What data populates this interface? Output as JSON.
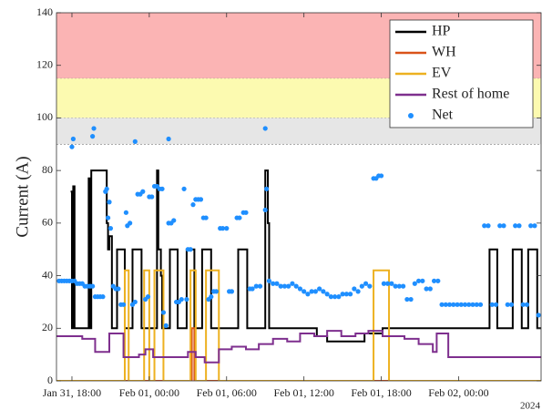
{
  "chart_data": {
    "type": "line",
    "y_label": "Current (A)",
    "year_label": "2024",
    "xlim": [
      16.8,
      54.4
    ],
    "xticks": [
      {
        "value": 18,
        "label": "Jan 31, 18:00"
      },
      {
        "value": 24,
        "label": "Feb 01, 00:00"
      },
      {
        "value": 30,
        "label": "Feb 01, 06:00"
      },
      {
        "value": 36,
        "label": "Feb 01, 12:00"
      },
      {
        "value": 42,
        "label": "Feb 01, 18:00"
      },
      {
        "value": 48,
        "label": "Feb 02, 00:00"
      }
    ],
    "ylim": [
      0,
      140
    ],
    "yticks": [
      0,
      20,
      40,
      60,
      80,
      100,
      120,
      140
    ],
    "legend": "upper right",
    "bands": [
      {
        "from": 115,
        "to": 140,
        "color": "#fbb4b4"
      },
      {
        "from": 100,
        "to": 115,
        "color": "#fcfab0"
      },
      {
        "from": 90,
        "to": 100,
        "color": "#e6e6e6"
      }
    ],
    "series": [
      {
        "name": "HP",
        "color": "#000000",
        "kind": "step",
        "x": [
          17.9,
          18.0,
          18.1,
          18.2,
          19.3,
          19.4,
          19.5,
          20.7,
          20.8,
          20.9,
          21.1,
          21.5,
          22.1,
          22.7,
          23.4,
          24.6,
          24.7,
          24.9,
          25.0,
          25.6,
          26.2,
          26.9,
          27.5,
          28.1,
          28.8,
          30.9,
          31.6,
          33.0,
          33.2,
          33.3,
          36.1,
          37.0,
          37.8,
          39.3,
          40.7,
          42.1,
          44.9,
          49.8,
          50.4,
          51.0,
          52.2,
          52.9,
          53.4,
          54.1,
          54.4
        ],
        "values": [
          72,
          20,
          74,
          20,
          77,
          20,
          80,
          60,
          50,
          55,
          20,
          50,
          20,
          50,
          20,
          80,
          50,
          40,
          20,
          50,
          20,
          50,
          20,
          50,
          20,
          50,
          20,
          80,
          60,
          20,
          20,
          17,
          15,
          15,
          18,
          20,
          20,
          20,
          50,
          20,
          50,
          20,
          50,
          20,
          20
        ]
      },
      {
        "name": "WH",
        "color": "#d95319",
        "kind": "step",
        "x": [
          16.8,
          27.3,
          27.5,
          54.4
        ],
        "values": [
          0,
          20,
          0,
          0
        ]
      },
      {
        "name": "EV",
        "color": "#edb120",
        "kind": "step",
        "x": [
          16.8,
          22.1,
          22.4,
          23.6,
          24.0,
          24.4,
          25.1,
          27.2,
          27.6,
          28.4,
          29.4,
          41.4,
          42.6,
          54.4
        ],
        "values": [
          0,
          42,
          0,
          42,
          0,
          42,
          0,
          42,
          0,
          42,
          0,
          42,
          0,
          0
        ]
      },
      {
        "name": "Rest of home",
        "color": "#7e2f8e",
        "kind": "step",
        "x": [
          16.8,
          18.8,
          19.8,
          20.9,
          22.0,
          23.2,
          23.7,
          24.3,
          26.2,
          27.0,
          27.6,
          28.3,
          29.4,
          30.4,
          31.5,
          32.5,
          33.6,
          34.7,
          35.7,
          36.8,
          37.8,
          38.9,
          40.0,
          41.0,
          42.1,
          43.8,
          44.9,
          46.0,
          46.3,
          47.2,
          54.4
        ],
        "values": [
          17,
          16,
          11,
          18,
          9,
          10,
          12,
          9,
          9,
          11,
          9,
          7,
          12,
          13,
          12,
          14,
          16,
          15,
          18,
          17,
          19,
          17,
          18,
          19,
          17,
          16,
          14,
          11,
          18,
          9,
          9
        ]
      },
      {
        "name": "Net",
        "color": "#1f8fff",
        "kind": "scatter",
        "x": [
          17.0,
          17.2,
          17.4,
          17.6,
          17.8,
          18.0,
          18.2,
          18.4,
          18.6,
          18.8,
          19.0,
          19.2,
          19.4,
          19.6,
          19.8,
          20.0,
          20.2,
          20.4,
          20.6,
          20.7,
          20.8,
          20.9,
          21.0,
          21.2,
          21.4,
          21.6,
          21.8,
          22.0,
          22.2,
          22.3,
          22.5,
          22.7,
          22.9,
          23.1,
          23.3,
          23.5,
          23.7,
          23.9,
          24.0,
          24.2,
          24.4,
          24.6,
          24.8,
          25.0,
          25.1,
          25.3,
          25.5,
          25.7,
          25.9,
          26.1,
          26.3,
          26.5,
          26.7,
          26.9,
          27.0,
          27.2,
          27.4,
          27.6,
          27.8,
          28.0,
          28.2,
          28.4,
          28.6,
          28.8,
          29.0,
          29.2,
          29.5,
          29.7,
          30.0,
          30.2,
          30.4,
          30.8,
          31.0,
          31.3,
          31.5,
          31.8,
          32.0,
          32.3,
          32.6,
          33.0,
          33.1,
          33.3,
          33.6,
          33.9,
          34.2,
          34.5,
          34.8,
          35.1,
          35.4,
          35.7,
          36.0,
          36.3,
          36.6,
          36.9,
          37.2,
          37.5,
          37.8,
          38.1,
          38.4,
          38.7,
          39.0,
          39.3,
          39.6,
          39.9,
          40.2,
          40.5,
          40.8,
          41.1,
          41.4,
          41.6,
          41.8,
          42.0,
          42.2,
          42.5,
          42.8,
          43.1,
          43.4,
          43.7,
          44.0,
          44.3,
          44.6,
          44.9,
          45.2,
          45.5,
          45.8,
          46.1,
          46.4,
          46.7,
          47.0,
          47.3,
          47.6,
          47.9,
          48.2,
          48.5,
          48.8,
          49.1,
          49.4,
          49.7,
          50.0,
          50.3,
          50.6,
          50.9,
          51.2,
          51.5,
          51.8,
          52.1,
          52.4,
          52.7,
          53.0,
          53.3,
          53.6,
          53.9,
          54.2,
          18.0,
          18.1,
          19.6,
          19.7,
          22.9,
          25.5,
          33.0
        ],
        "values": [
          38,
          38,
          38,
          38,
          38,
          38,
          38,
          37,
          37,
          37,
          36,
          36,
          36,
          36,
          32,
          32,
          32,
          32,
          72,
          73,
          62,
          68,
          58,
          36,
          35,
          35,
          29,
          29,
          64,
          59,
          60,
          29,
          30,
          71,
          71,
          72,
          31,
          32,
          70,
          70,
          74,
          74,
          73,
          73,
          26,
          21,
          60,
          60,
          61,
          30,
          30,
          31,
          73,
          31,
          50,
          50,
          67,
          69,
          69,
          69,
          62,
          62,
          31,
          32,
          34,
          34,
          58,
          58,
          58,
          34,
          34,
          62,
          62,
          64,
          64,
          35,
          35,
          36,
          36,
          65,
          73,
          38,
          37,
          37,
          36,
          36,
          36,
          37,
          36,
          35,
          34,
          33,
          34,
          34,
          35,
          34,
          33,
          32,
          32,
          32,
          33,
          33,
          33,
          35,
          34,
          36,
          37,
          36,
          77,
          77,
          78,
          78,
          37,
          37,
          37,
          36,
          36,
          36,
          31,
          31,
          37,
          38,
          38,
          35,
          35,
          38,
          38,
          29,
          29,
          29,
          29,
          29,
          29,
          29,
          29,
          29,
          29,
          29,
          59,
          59,
          29,
          29,
          59,
          59,
          29,
          29,
          59,
          59,
          29,
          29,
          59,
          59,
          25,
          89,
          92,
          93,
          96,
          91,
          92,
          96
        ]
      }
    ]
  }
}
